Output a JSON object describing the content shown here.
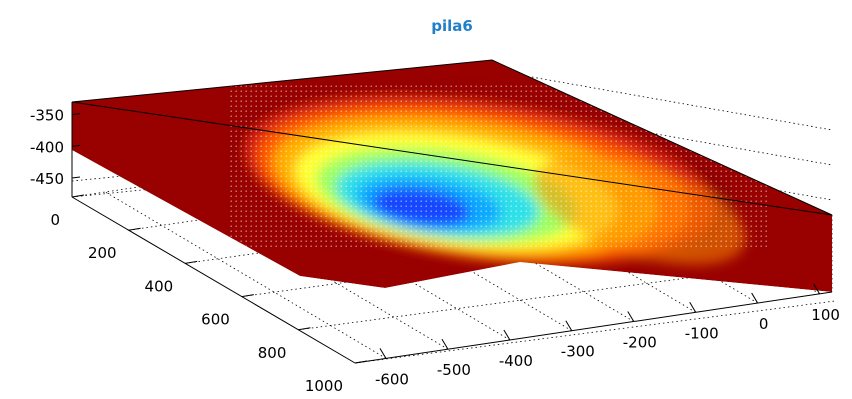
{
  "chart_data": {
    "type": "surface",
    "title": "pila6",
    "title_color": "#1f7fc8",
    "colormap": "jet",
    "z_ticks": [
      "-350",
      "-400",
      "-450"
    ],
    "y_ticks": [
      "0",
      "200",
      "400",
      "600",
      "800",
      "1000"
    ],
    "x_ticks": [
      "-600",
      "-500",
      "-400",
      "-300",
      "-200",
      "-100",
      "0",
      "100"
    ],
    "z_range": [
      -480,
      -330
    ],
    "y_range": [
      0,
      1000
    ],
    "x_range": [
      -650,
      120
    ],
    "grid": true,
    "surface_levels": [
      0.92,
      0.86,
      0.78,
      0.68,
      0.55,
      0.42,
      0.3,
      0.18,
      0.08
    ],
    "colors": [
      "#8b0000",
      "#d61a0c",
      "#ff5a00",
      "#ffb000",
      "#ffff33",
      "#9dff60",
      "#2fe0e8",
      "#0ea8ff",
      "#1547ff"
    ]
  }
}
